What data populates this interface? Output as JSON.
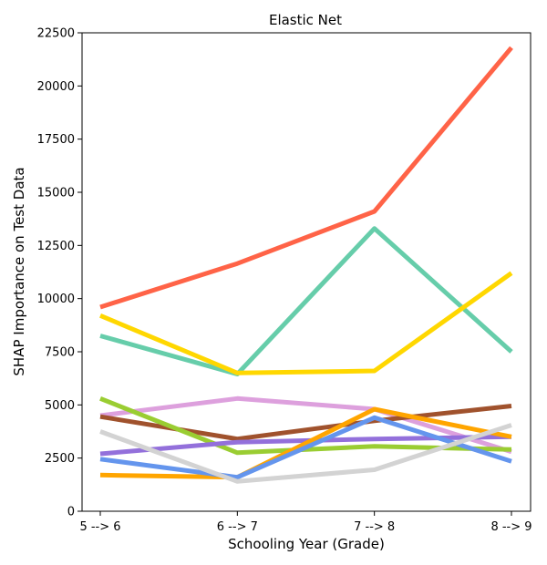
{
  "chart_data": {
    "type": "line",
    "title": "Elastic Net",
    "xlabel": "Schooling Year (Grade)",
    "ylabel": "SHAP Importance on Test Data",
    "categories": [
      "5 --> 6",
      "6 --> 7",
      "7 --> 8",
      "8 --> 9"
    ],
    "ylim": [
      0,
      22500
    ],
    "yticks": [
      0,
      2500,
      5000,
      7500,
      10000,
      12500,
      15000,
      17500,
      20000,
      22500
    ],
    "grid": false,
    "legend": "none",
    "series": [
      {
        "color": "#ff6347",
        "values": [
          9600,
          11650,
          14100,
          21800
        ]
      },
      {
        "color": "#66cdaa",
        "values": [
          8250,
          6450,
          13300,
          7500
        ]
      },
      {
        "color": "#ffd700",
        "values": [
          9200,
          6500,
          6600,
          11200
        ]
      },
      {
        "color": "#dda0dd",
        "values": [
          4500,
          5300,
          4800,
          2800
        ]
      },
      {
        "color": "#a0522d",
        "values": [
          4450,
          3400,
          4250,
          4950
        ]
      },
      {
        "color": "#9acd32",
        "values": [
          5300,
          2750,
          3050,
          2900
        ]
      },
      {
        "color": "#9370db",
        "values": [
          2700,
          3250,
          3400,
          3500
        ]
      },
      {
        "color": "#ffa500",
        "values": [
          1700,
          1600,
          4800,
          3500
        ]
      },
      {
        "color": "#6495ed",
        "values": [
          2450,
          1600,
          4400,
          2350
        ]
      },
      {
        "color": "#d3d3d3",
        "values": [
          3750,
          1400,
          1950,
          4050
        ]
      }
    ]
  }
}
